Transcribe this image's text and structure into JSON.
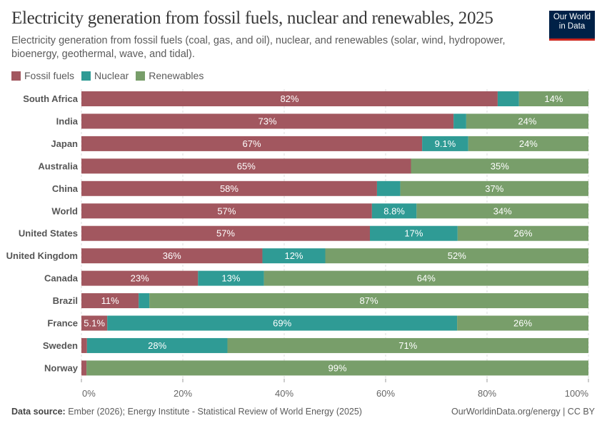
{
  "title": "Electricity generation from fossil fuels, nuclear and renewables, 2025",
  "subtitle": "Electricity generation from fossil fuels (coal, gas, and oil), nuclear, and renewables (solar, wind, hydropower, bioenergy, geothermal, wave, and tidal).",
  "logo": "Our World in Data",
  "footer": {
    "source_label": "Data source:",
    "source": "Ember (2026); Energy Institute - Statistical Review of World Energy (2025)",
    "credit": "OurWorldinData.org/energy | CC BY"
  },
  "chart_data": {
    "type": "bar",
    "orientation": "horizontal",
    "stacked": true,
    "xlim": [
      0,
      100
    ],
    "xticks": [
      "0%",
      "20%",
      "40%",
      "60%",
      "80%",
      "100%"
    ],
    "legend": "top-left",
    "grid": true,
    "categories": [
      "South Africa",
      "India",
      "Japan",
      "Australia",
      "China",
      "World",
      "United States",
      "United Kingdom",
      "Canada",
      "Brazil",
      "France",
      "Sweden",
      "Norway"
    ],
    "series": [
      {
        "name": "Fossil fuels",
        "color": "#a2575f",
        "values": [
          82.1,
          73.4,
          67.2,
          65,
          58.3,
          57.3,
          56.9,
          35.7,
          23,
          11.3,
          5.1,
          1.1,
          1
        ],
        "labels": [
          "82%",
          "73%",
          "67%",
          "65%",
          "58%",
          "57%",
          "57%",
          "36%",
          "23%",
          "11%",
          "5.1%",
          "",
          ""
        ]
      },
      {
        "name": "Nuclear",
        "color": "#2f9b95",
        "values": [
          4.2,
          2.5,
          9.1,
          0,
          4.6,
          8.8,
          17.3,
          12.4,
          13,
          2.1,
          69,
          27.7,
          0
        ],
        "labels": [
          "",
          "",
          "9.1%",
          "",
          "",
          "8.8%",
          "17%",
          "12%",
          "13%",
          "",
          "69%",
          "28%",
          ""
        ]
      },
      {
        "name": "Renewables",
        "color": "#789e6a",
        "values": [
          13.7,
          24.1,
          23.7,
          35,
          37.1,
          33.9,
          25.8,
          51.9,
          64,
          86.6,
          25.9,
          71.2,
          99
        ],
        "labels": [
          "14%",
          "24%",
          "24%",
          "35%",
          "37%",
          "34%",
          "26%",
          "52%",
          "64%",
          "87%",
          "26%",
          "71%",
          "99%"
        ]
      }
    ]
  }
}
